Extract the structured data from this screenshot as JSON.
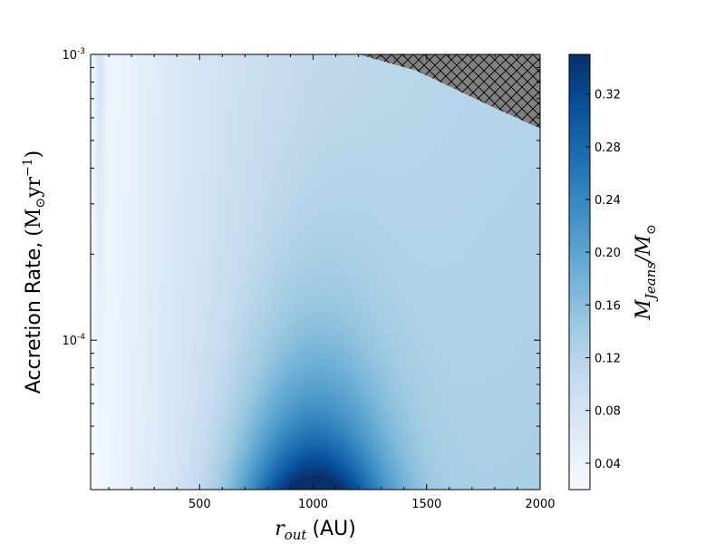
{
  "chart_data": {
    "type": "heatmap",
    "title": "",
    "xlabel": {
      "symbol": "r",
      "subscript": "out",
      "unit": "(AU)"
    },
    "ylabel": {
      "prefix": "Accretion Rate,",
      "unit_open": "(M",
      "unit_sun": "⊙",
      "unit_mid": "yr",
      "unit_exp": "−1",
      "unit_close": ")"
    },
    "colorbar_label": {
      "main": "M",
      "subscript": "Jeans",
      "slash": "/M",
      "sun": "⊙"
    },
    "x_axis": {
      "scale": "linear",
      "range": [
        20,
        2000
      ],
      "ticks": [
        500,
        1000,
        1500,
        2000
      ],
      "tick_labels": [
        "500",
        "1000",
        "1500",
        "2000"
      ]
    },
    "y_axis": {
      "scale": "log",
      "range": [
        3e-05,
        0.001
      ],
      "major_ticks": [
        {
          "value": 0.001,
          "mantissa": "10",
          "exponent": "-3"
        },
        {
          "value": 0.0001,
          "mantissa": "10",
          "exponent": "-4"
        }
      ]
    },
    "colorbar": {
      "range": [
        0.02,
        0.35
      ],
      "colormap": "Blues",
      "ticks": [
        0.04,
        0.08,
        0.12,
        0.16,
        0.2,
        0.24,
        0.28,
        0.32
      ],
      "tick_labels": [
        "0.04",
        "0.08",
        "0.12",
        "0.16",
        "0.20",
        "0.24",
        "0.28",
        "0.32"
      ]
    },
    "peak": {
      "x": 1000,
      "y": 3e-05,
      "value": 0.35
    },
    "excluded_region": {
      "description": "hatched",
      "boundary": [
        {
          "x": 1200,
          "y": 0.001
        },
        {
          "x": 1450,
          "y": 0.00088
        },
        {
          "x": 1800,
          "y": 0.00065
        },
        {
          "x": 2000,
          "y": 0.00055
        }
      ],
      "fill": "#808080"
    },
    "colors": {
      "low": "#f7fbff",
      "mid": "#9ecae1",
      "high": "#08306b"
    }
  }
}
